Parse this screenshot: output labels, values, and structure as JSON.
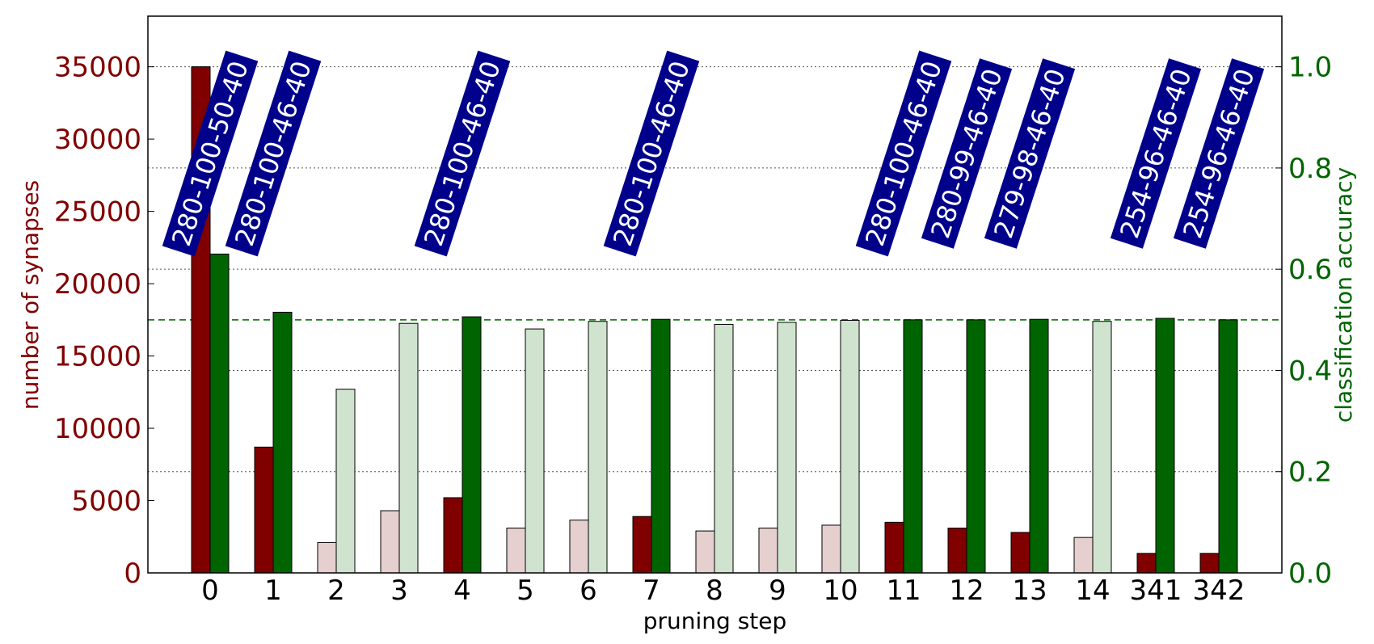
{
  "chart_data": {
    "type": "bar",
    "xlabel": "pruning step",
    "ylabel_left": "number of synapses",
    "ylabel_right": "classification accuracy",
    "categories": [
      "0",
      "1",
      "2",
      "3",
      "4",
      "5",
      "6",
      "7",
      "8",
      "9",
      "10",
      "11",
      "12",
      "13",
      "14",
      "341",
      "342"
    ],
    "ylim_left": [
      0,
      38500
    ],
    "ylim_right": [
      0.0,
      1.1
    ],
    "yticks_left": [
      0,
      5000,
      10000,
      15000,
      20000,
      25000,
      30000,
      35000
    ],
    "yticks_right": [
      "0.0",
      "0.2",
      "0.4",
      "0.6",
      "0.8",
      "1.0"
    ],
    "grid": "horizontal dotted",
    "reference_line": {
      "axis": "right",
      "value": 0.5,
      "style": "dashed",
      "color": "#006400"
    },
    "series": [
      {
        "axis": "left",
        "color": "#800000",
        "light_color": "#e6cfcf",
        "values": [
          35000,
          8700,
          2100,
          4300,
          5200,
          3100,
          3650,
          3900,
          2900,
          3100,
          3300,
          3500,
          3100,
          2800,
          2450,
          1350,
          1350
        ]
      },
      {
        "axis": "right",
        "color": "#006400",
        "light_color": "#cfe3cf",
        "values": [
          0.63,
          0.515,
          0.363,
          0.493,
          0.506,
          0.482,
          0.497,
          0.501,
          0.491,
          0.495,
          0.499,
          0.5,
          0.5,
          0.501,
          0.497,
          0.503,
          0.5
        ]
      }
    ],
    "highlighted": [
      true,
      true,
      false,
      false,
      true,
      false,
      false,
      true,
      false,
      false,
      false,
      true,
      true,
      true,
      false,
      true,
      true
    ],
    "annotations": [
      {
        "index": 0,
        "text": "280-100-50-40"
      },
      {
        "index": 1,
        "text": "280-100-46-40"
      },
      {
        "index": 4,
        "text": "280-100-46-40"
      },
      {
        "index": 7,
        "text": "280-100-46-40"
      },
      {
        "index": 11,
        "text": "280-100-46-40"
      },
      {
        "index": 12,
        "text": "280-99-46-40"
      },
      {
        "index": 13,
        "text": "279-98-46-40"
      },
      {
        "index": 15,
        "text": "254-96-46-40"
      },
      {
        "index": 16,
        "text": "254-96-46-40"
      }
    ],
    "annotation_box_color": "#00008b",
    "left_axis_color": "#800000",
    "right_axis_color": "#006400"
  }
}
